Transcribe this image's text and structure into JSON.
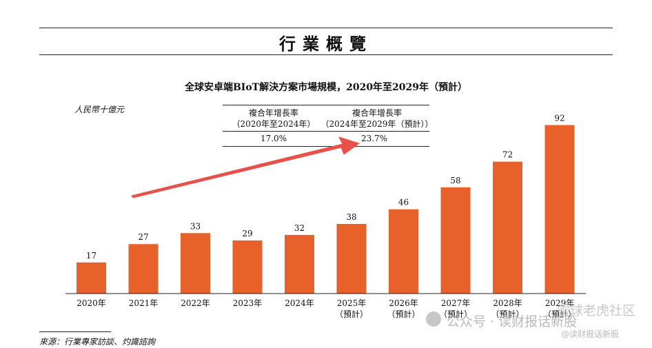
{
  "header": {
    "section_title": "行業概覽"
  },
  "chart_data": {
    "type": "bar",
    "title": "全球安卓端BIoT解決方案市場規模，2020年至2029年（預計）",
    "unit_label": "人民幣十億元",
    "categories": [
      "2020年",
      "2021年",
      "2022年",
      "2023年",
      "2024年",
      "2025年",
      "2026年",
      "2027年",
      "2028年",
      "2029年"
    ],
    "forecast_note": "（預計）",
    "forecast_from_index": 5,
    "values": [
      17,
      27,
      33,
      29,
      32,
      38,
      46,
      58,
      72,
      92
    ],
    "data_labels": [
      "17",
      "27",
      "33",
      "29",
      "32",
      "38",
      "46",
      "58",
      "72",
      "92"
    ],
    "ylim": [
      0,
      100
    ],
    "grid": false,
    "bar_color": "#e8602a",
    "arrow_color": "#e8504a",
    "cagr_table": {
      "headers": [
        {
          "line1": "複合年增長率",
          "line2": "（2020年至2024年）"
        },
        {
          "line1": "複合年增長率",
          "line2": "（2024年至2029年（預計））"
        }
      ],
      "values": [
        "17.0%",
        "23.7%"
      ]
    }
  },
  "footer": {
    "source": "來源：行業專家訪談、灼識諮詢"
  },
  "watermark": {
    "main": "公众号 · 读财报话新股",
    "handle": "@读财报话新股",
    "corner": "雪球老虎社区"
  }
}
